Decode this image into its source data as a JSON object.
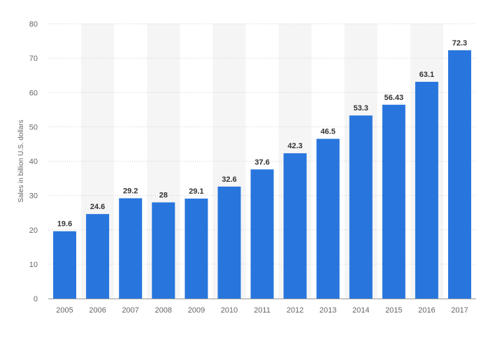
{
  "chart_data": {
    "type": "bar",
    "title": "",
    "xlabel": "",
    "ylabel": "Sales in billion U.S. dollars",
    "ylim": [
      0,
      80
    ],
    "yticks": [
      0,
      10,
      20,
      30,
      40,
      50,
      60,
      70,
      80
    ],
    "grid": true,
    "legend": "none",
    "bar_color": "#2876dd",
    "alt_band_color": "#f5f5f5",
    "categories": [
      "2005",
      "2006",
      "2007",
      "2008",
      "2009",
      "2010",
      "2011",
      "2012",
      "2013",
      "2014",
      "2015",
      "2016",
      "2017"
    ],
    "values": [
      19.6,
      24.6,
      29.2,
      28,
      29.1,
      32.6,
      37.6,
      42.3,
      46.5,
      53.3,
      56.43,
      63.1,
      72.3
    ],
    "value_labels": [
      "19.6",
      "24.6",
      "29.2",
      "28",
      "29.1",
      "32.6",
      "37.6",
      "42.3",
      "46.5",
      "53.3",
      "56.43",
      "63.1",
      "72.3"
    ]
  }
}
